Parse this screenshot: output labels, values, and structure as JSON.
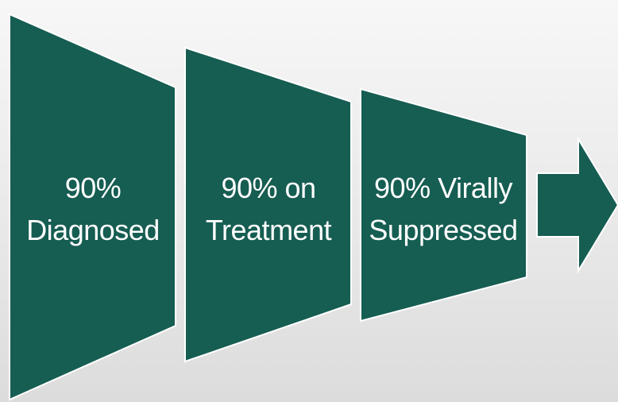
{
  "diagram": {
    "stages": [
      {
        "line1": "90%",
        "line2": "Diagnosed"
      },
      {
        "line1": "90% on",
        "line2": "Treatment"
      },
      {
        "line1": "90% Virally",
        "line2": "Suppressed"
      }
    ],
    "colors": {
      "fill": "#165d52",
      "stroke": "#ffffff",
      "text": "#ffffff"
    }
  }
}
